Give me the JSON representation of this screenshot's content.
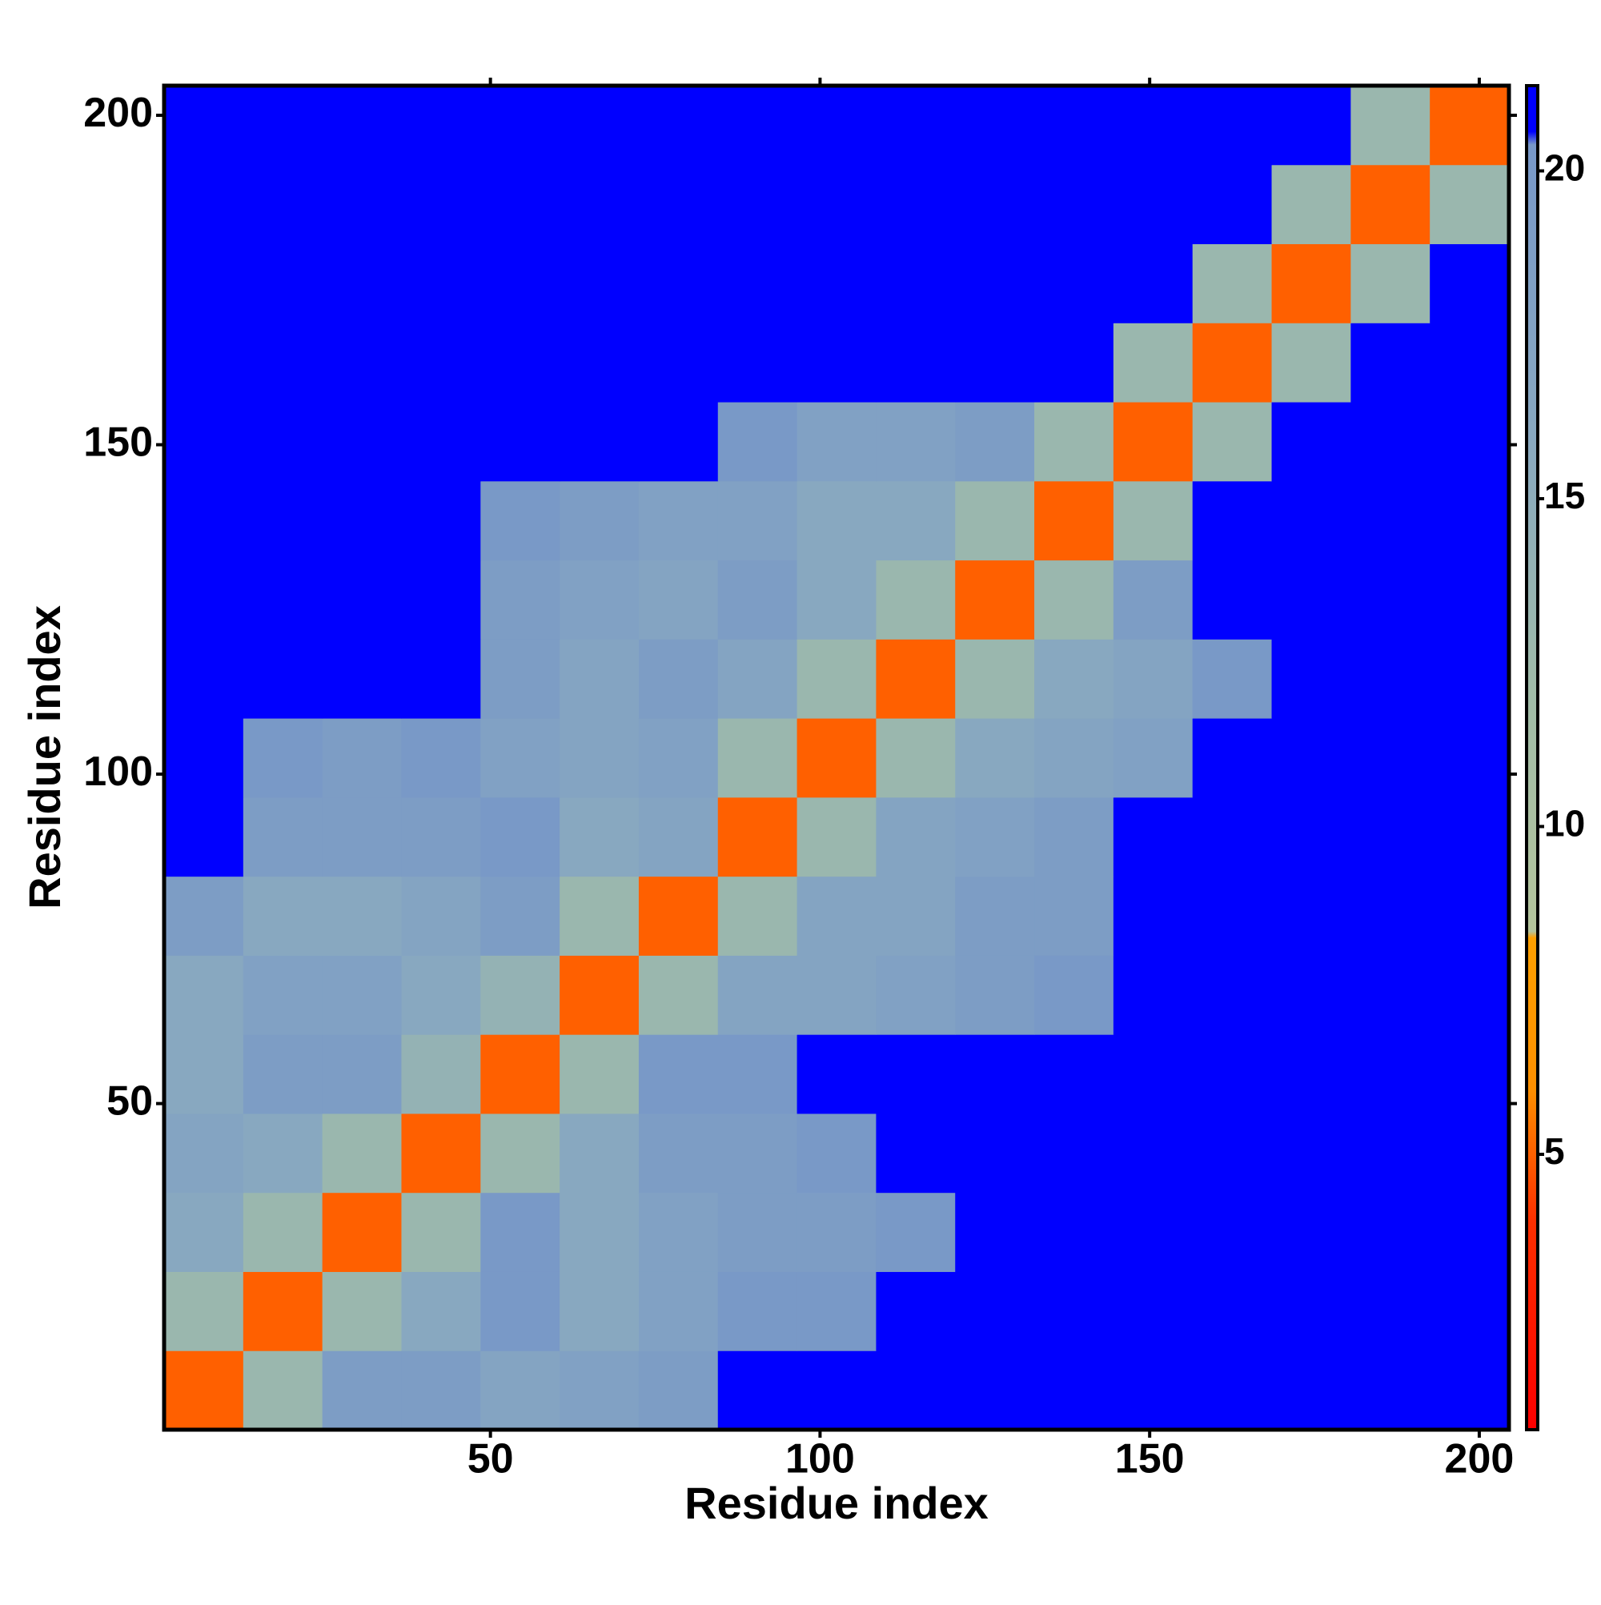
{
  "chart_data": {
    "type": "heatmap",
    "xlabel": "Residue index",
    "ylabel": "Residue index",
    "xlim": [
      0.5,
      204.5
    ],
    "ylim": [
      0.5,
      204.5
    ],
    "xticks": [
      50,
      100,
      150,
      200
    ],
    "yticks": [
      50,
      100,
      150,
      200
    ],
    "xbins": [
      0.5,
      12.5,
      24.5,
      36.5,
      48.5,
      60.5,
      72.5,
      84.5,
      96.5,
      108.5,
      120.5,
      132.5,
      144.5,
      156.5,
      168.5,
      180.5,
      192.5,
      204.5
    ],
    "ybins": [
      0.5,
      12.5,
      24.5,
      36.5,
      48.5,
      60.5,
      72.5,
      84.5,
      96.5,
      108.5,
      120.5,
      132.5,
      144.5,
      156.5,
      168.5,
      180.5,
      192.5,
      204.5
    ],
    "z": [
      [
        5,
        13,
        19,
        19,
        17,
        18,
        19,
        21,
        21,
        21,
        21,
        21,
        21,
        21,
        21,
        21,
        21
      ],
      [
        13,
        5,
        13,
        16,
        20,
        16,
        18,
        20,
        20,
        21,
        21,
        21,
        21,
        21,
        21,
        21,
        21
      ],
      [
        16,
        13,
        5,
        13,
        20,
        16,
        18,
        19,
        19,
        20,
        21,
        21,
        21,
        21,
        21,
        21,
        21
      ],
      [
        17,
        16,
        13,
        5,
        13,
        16,
        19,
        19,
        20,
        21,
        21,
        21,
        21,
        21,
        21,
        21,
        21
      ],
      [
        16,
        19,
        19,
        14,
        5,
        13,
        20,
        20,
        21,
        21,
        21,
        21,
        21,
        21,
        21,
        21,
        21
      ],
      [
        16,
        18,
        18,
        16,
        14,
        5,
        13,
        17,
        17,
        18,
        19,
        20,
        21,
        21,
        21,
        21,
        21
      ],
      [
        19,
        16,
        16,
        17,
        19,
        13,
        5,
        13,
        17,
        17,
        19,
        19,
        21,
        21,
        21,
        21,
        21
      ],
      [
        21,
        19,
        19,
        19,
        20,
        16,
        17,
        5,
        13,
        17,
        18,
        19,
        21,
        21,
        21,
        21,
        21
      ],
      [
        21,
        20,
        19,
        20,
        18,
        17,
        18,
        13,
        5,
        13,
        16,
        17,
        18,
        21,
        21,
        21,
        21
      ],
      [
        21,
        21,
        21,
        21,
        19,
        17,
        19,
        17,
        13,
        5,
        13,
        16,
        17,
        20,
        21,
        21,
        21
      ],
      [
        21,
        21,
        21,
        21,
        19,
        18,
        17,
        19,
        16,
        13,
        5,
        13,
        19,
        21,
        21,
        21,
        21
      ],
      [
        21,
        21,
        21,
        21,
        20,
        19,
        18,
        18,
        16,
        16,
        13,
        5,
        13,
        21,
        21,
        21,
        21
      ],
      [
        21,
        21,
        21,
        21,
        21,
        21,
        21,
        20,
        18,
        18,
        19,
        13,
        5,
        13,
        21,
        21,
        21
      ],
      [
        21,
        21,
        21,
        21,
        21,
        21,
        21,
        21,
        21,
        21,
        21,
        21,
        13,
        5,
        13,
        21,
        21
      ],
      [
        21,
        21,
        21,
        21,
        21,
        21,
        21,
        21,
        21,
        21,
        21,
        21,
        21,
        13,
        5,
        13,
        21
      ],
      [
        21,
        21,
        21,
        21,
        21,
        21,
        21,
        21,
        21,
        21,
        21,
        21,
        21,
        21,
        13,
        5,
        13
      ],
      [
        21,
        21,
        21,
        21,
        21,
        21,
        21,
        21,
        21,
        21,
        21,
        21,
        21,
        21,
        21,
        13,
        5
      ]
    ],
    "colorbar_lim": [
      0.8,
      21.3
    ],
    "colorbar_ticks": [
      5,
      10,
      15,
      20
    ],
    "colorscale": [
      [
        0.8,
        "#ff0000"
      ],
      [
        4,
        "#ff3000"
      ],
      [
        6,
        "#ff9000"
      ],
      [
        8.3,
        "#ffa000"
      ],
      [
        8.4,
        "#b4c49c"
      ],
      [
        12,
        "#a0bca8"
      ],
      [
        16,
        "#88a8c0"
      ],
      [
        20.4,
        "#7898c8"
      ],
      [
        20.6,
        "#0000ff"
      ],
      [
        21.3,
        "#0000ff"
      ]
    ]
  }
}
